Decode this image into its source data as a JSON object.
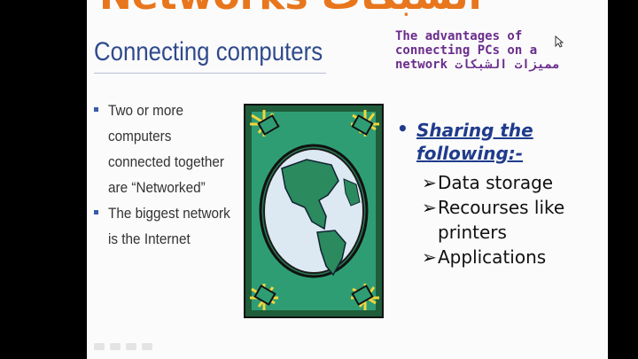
{
  "slide": {
    "top_title": "Networks الشبكات",
    "heading": "Connecting computers",
    "advantages_label": "The advantages of connecting PCs on a network مميزات الشبكات",
    "left_bullets": [
      {
        "text": "Two or more computers connected together are “Networked”"
      },
      {
        "text": "The biggest network is the Internet"
      }
    ],
    "right_main": "Sharing the following:-",
    "right_bullet_symbol": "•",
    "arrow_symbol": "➢",
    "right_sub": [
      {
        "text": "Data storage"
      },
      {
        "text": "Recourses like printers"
      },
      {
        "text": "Applications"
      }
    ]
  },
  "colors": {
    "top_title": "#e8761c",
    "heading": "#2f4a8c",
    "advantages": "#6a2d8c",
    "sharing": "#1f3b8c",
    "clipart_frame": "#1f5d3b",
    "clipart_bg": "#2f9d74"
  },
  "icons": [
    "globe-clipart-icon",
    "computer-icon",
    "mouse-pointer-icon",
    "slide-nav-icon"
  ]
}
